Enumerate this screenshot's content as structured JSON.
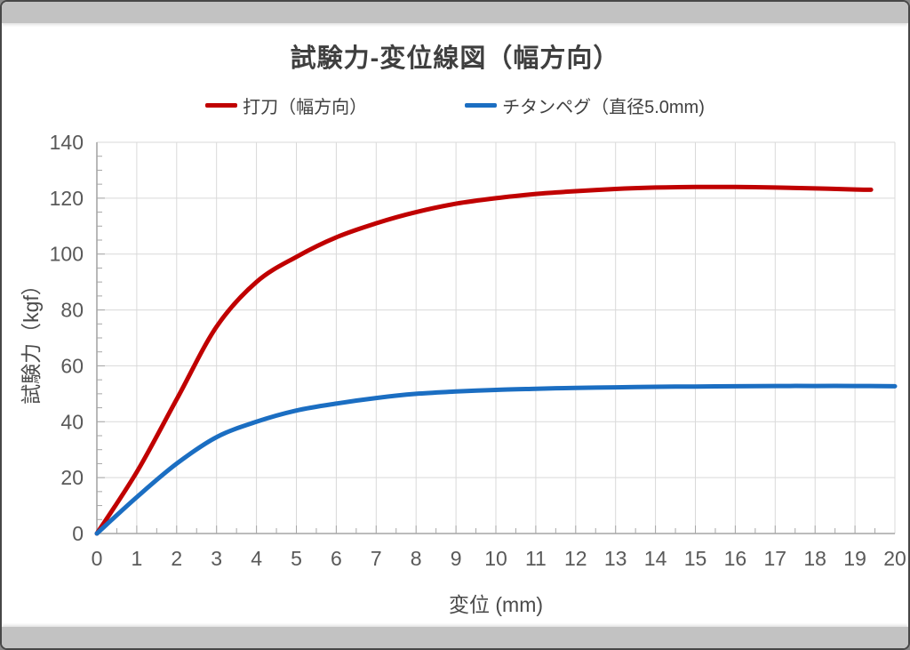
{
  "title": "試験力-変位線図（幅方向）",
  "legend": [
    {
      "label": "打刀（幅方向）",
      "color": "#c00000"
    },
    {
      "label": "チタンペグ（直径5.0mm)",
      "color": "#1b6ec2"
    }
  ],
  "axes": {
    "x_title": "変位 (mm)",
    "y_title": "試験力（kgf）"
  },
  "colors": {
    "red_series": "#c00000",
    "blue_series": "#1b6ec2",
    "gridline": "#d9d9d9",
    "axis_line": "#a6a6a6",
    "tick_label": "#595959",
    "frame_bar": "#c2c2c2"
  },
  "chart_data": {
    "type": "line",
    "title": "試験力-変位線図（幅方向）",
    "xlabel": "変位 (mm)",
    "ylabel": "試験力（kgf）",
    "xlim": [
      0,
      20
    ],
    "ylim": [
      0,
      140
    ],
    "x_ticks": [
      0,
      1,
      2,
      3,
      4,
      5,
      6,
      7,
      8,
      9,
      10,
      11,
      12,
      13,
      14,
      15,
      16,
      17,
      18,
      19,
      20
    ],
    "y_ticks": [
      0,
      20,
      40,
      60,
      80,
      100,
      120,
      140
    ],
    "x_minor_tick_step": 0.5,
    "y_minor_tick_step": 5,
    "grid": true,
    "legend_position": "top",
    "series": [
      {
        "name": "打刀（幅方向）",
        "color": "#c00000",
        "points": [
          [
            0,
            0
          ],
          [
            1,
            22
          ],
          [
            2,
            48
          ],
          [
            3,
            74
          ],
          [
            4,
            90
          ],
          [
            5,
            99
          ],
          [
            6,
            106
          ],
          [
            7,
            111
          ],
          [
            8,
            115
          ],
          [
            9,
            118
          ],
          [
            10,
            120
          ],
          [
            11,
            121.5
          ],
          [
            12,
            122.5
          ],
          [
            13,
            123.3
          ],
          [
            14,
            123.8
          ],
          [
            15,
            124
          ],
          [
            16,
            124
          ],
          [
            17,
            123.8
          ],
          [
            18,
            123.5
          ],
          [
            19,
            123.1
          ],
          [
            19.4,
            123
          ]
        ]
      },
      {
        "name": "チタンペグ（直径5.0mm)",
        "color": "#1b6ec2",
        "points": [
          [
            0,
            0
          ],
          [
            1,
            13
          ],
          [
            2,
            25
          ],
          [
            3,
            34.5
          ],
          [
            4,
            40
          ],
          [
            5,
            44
          ],
          [
            6,
            46.5
          ],
          [
            7,
            48.5
          ],
          [
            8,
            50
          ],
          [
            9,
            50.8
          ],
          [
            10,
            51.4
          ],
          [
            11,
            51.8
          ],
          [
            12,
            52.1
          ],
          [
            13,
            52.3
          ],
          [
            14,
            52.5
          ],
          [
            15,
            52.6
          ],
          [
            16,
            52.7
          ],
          [
            17,
            52.8
          ],
          [
            18,
            52.8
          ],
          [
            19,
            52.8
          ],
          [
            20,
            52.7
          ]
        ]
      }
    ]
  }
}
